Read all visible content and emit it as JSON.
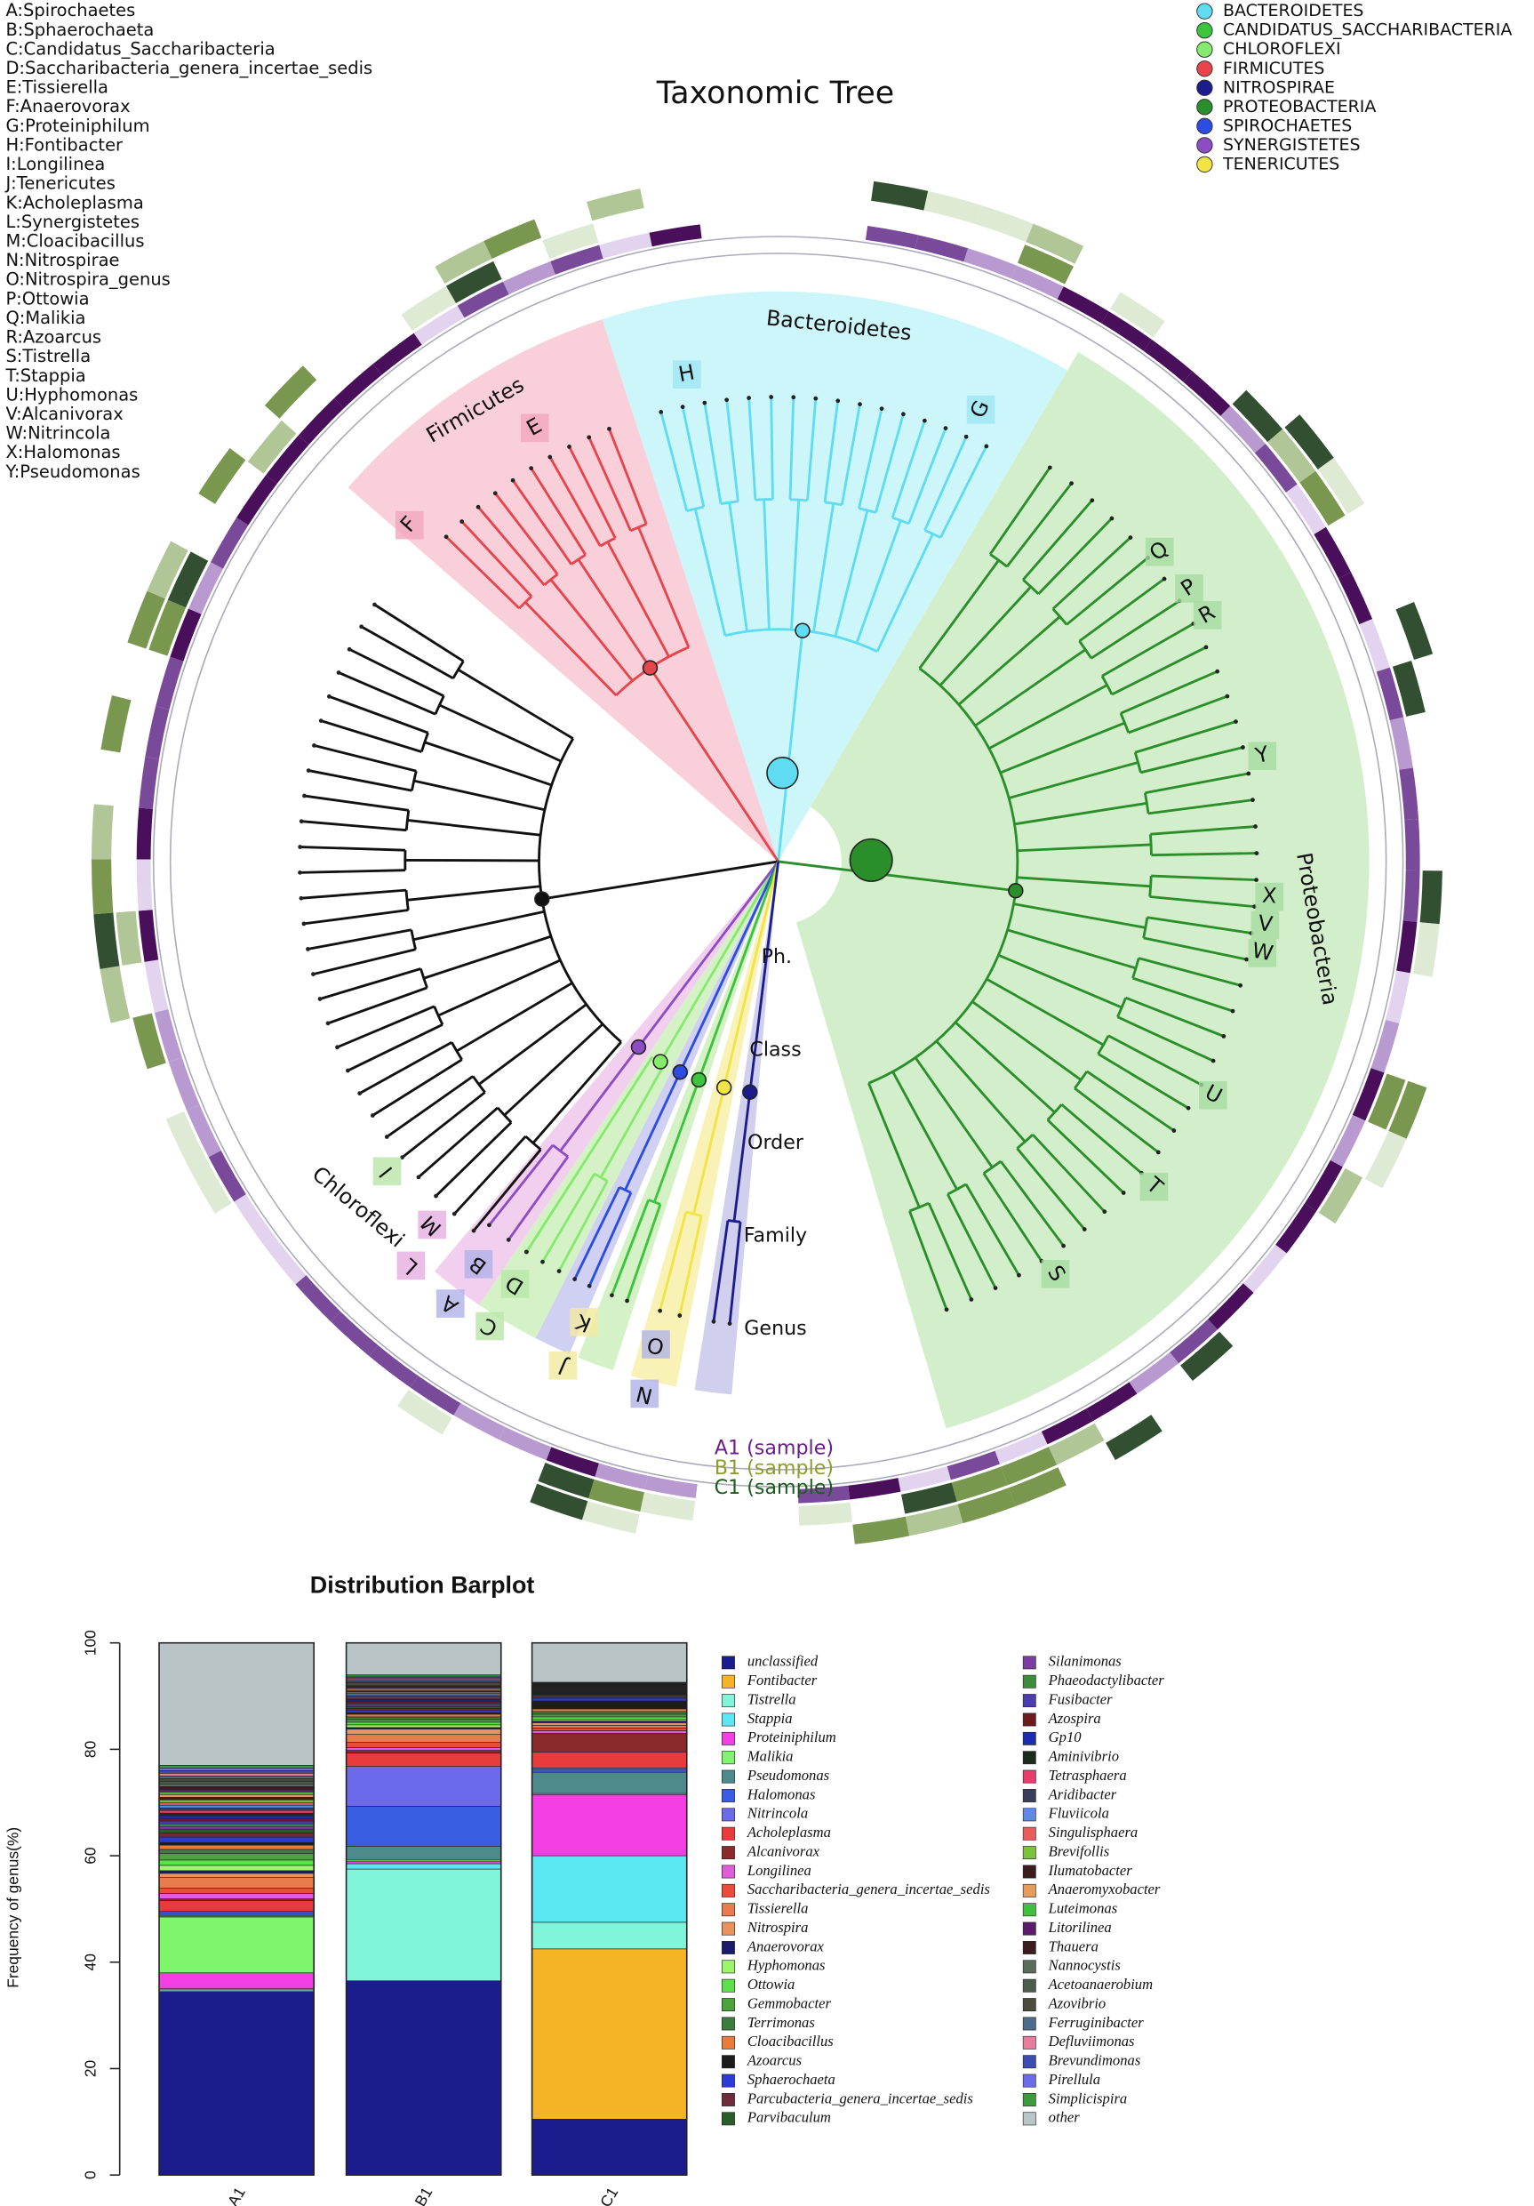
{
  "tree": {
    "title": "Taxonomic Tree",
    "key": [
      "A:Spirochaetes",
      "B:Sphaerochaeta",
      "C:Candidatus_Saccharibacteria",
      "D:Saccharibacteria_genera_incertae_sedis",
      "E:Tissierella",
      "F:Anaerovorax",
      "G:Proteiniphilum",
      "H:Fontibacter",
      "I:Longilinea",
      "J:Tenericutes",
      "K:Acholeplasma",
      "L:Synergistetes",
      "M:Cloacibacillus",
      "N:Nitrospirae",
      "O:Nitrospira_genus",
      "P:Ottowia",
      "Q:Malikia",
      "R:Azoarcus",
      "S:Tistrella",
      "T:Stappia",
      "U:Hyphomonas",
      "V:Alcanivorax",
      "W:Nitrincola",
      "X:Halomonas",
      "Y:Pseudomonas"
    ],
    "phylum_legend": [
      {
        "name": "BACTEROIDETES",
        "color": "#5fdcf2"
      },
      {
        "name": "CANDIDATUS_SACCHARIBACTERIA",
        "color": "#3cc43c"
      },
      {
        "name": "CHLOROFLEXI",
        "color": "#86ea6e"
      },
      {
        "name": "FIRMICUTES",
        "color": "#e8444c"
      },
      {
        "name": "NITROSPIRAE",
        "color": "#1c1c8c"
      },
      {
        "name": "PROTEOBACTERIA",
        "color": "#2a8e2a"
      },
      {
        "name": "SPIROCHAETES",
        "color": "#2c4ce2"
      },
      {
        "name": "SYNERGISTETES",
        "color": "#8c4cc4"
      },
      {
        "name": "TENERICUTES",
        "color": "#f2e444"
      }
    ],
    "clade_labels": [
      "Bacteroidetes",
      "Firmicutes",
      "Proteobacteria",
      "Chloroflexi"
    ],
    "node_labels": [
      "H",
      "G",
      "E",
      "F",
      "Q",
      "P",
      "R",
      "Y",
      "X",
      "V",
      "W",
      "U",
      "T",
      "S",
      "I",
      "M",
      "L",
      "B",
      "A",
      "D",
      "C",
      "K",
      "J",
      "O",
      "N"
    ],
    "levels": [
      "Ph.",
      "Class",
      "Order",
      "Family",
      "Genus"
    ],
    "rings": [
      {
        "label": "A1 (sample)",
        "color": "#6c1c8c"
      },
      {
        "label": "B1 (sample)",
        "color": "#8e9c2c"
      },
      {
        "label": "C1 (sample)",
        "color": "#1c5c1c"
      }
    ]
  },
  "chart_data": {
    "type": "stacked_bar",
    "title": "Distribution Barplot",
    "y_label": "Frequency of genus(%)",
    "categories": [
      "A1",
      "B1",
      "C1"
    ],
    "ylim": [
      0,
      100
    ],
    "yticks": [
      0,
      20,
      40,
      60,
      80,
      100
    ],
    "series": [
      {
        "name": "unclassified",
        "color": "#1c1c8e",
        "values": [
          34.5,
          36.5,
          10.5
        ]
      },
      {
        "name": "Fontibacter",
        "color": "#f5b326",
        "values": [
          0,
          0,
          32
        ]
      },
      {
        "name": "Tistrella",
        "color": "#80f5da",
        "values": [
          0.3,
          21,
          5
        ]
      },
      {
        "name": "Stappia",
        "color": "#5ce8f2",
        "values": [
          0.2,
          1,
          12.5
        ]
      },
      {
        "name": "Proteiniphilum",
        "color": "#f23ee2",
        "values": [
          3,
          0.5,
          11.5
        ]
      },
      {
        "name": "Malikia",
        "color": "#7ef56c",
        "values": [
          10.5,
          0.3,
          0.2
        ]
      },
      {
        "name": "Pseudomonas",
        "color": "#4e8a8c",
        "values": [
          0.3,
          2.5,
          4
        ]
      },
      {
        "name": "Halomonas",
        "color": "#3a5ee2",
        "values": [
          0.5,
          7.5,
          0.5
        ]
      },
      {
        "name": "Nitrincola",
        "color": "#6a6aea",
        "values": [
          0.3,
          7.5,
          0.3
        ]
      },
      {
        "name": "Acholeplasma",
        "color": "#e83c3c",
        "values": [
          2,
          2.5,
          3
        ]
      },
      {
        "name": "Alcanivorax",
        "color": "#8a2a2c",
        "values": [
          0.3,
          0.5,
          3.5
        ]
      },
      {
        "name": "Longilinea",
        "color": "#e05cd8",
        "values": [
          1,
          0.5,
          0.5
        ]
      },
      {
        "name": "Saccharibacteria_genera_incertae_sedis",
        "color": "#e84c3c",
        "values": [
          1,
          1,
          0.5
        ]
      },
      {
        "name": "Tissierella",
        "color": "#e87c4c",
        "values": [
          2,
          1.5,
          0.5
        ]
      },
      {
        "name": "Nitrospira",
        "color": "#e8925c",
        "values": [
          0.8,
          1,
          0.5
        ]
      },
      {
        "name": "Anaerovorax",
        "color": "#1c1c6c",
        "values": [
          0.5,
          0.3,
          0.3
        ]
      },
      {
        "name": "Hyphomonas",
        "color": "#9cf56c",
        "values": [
          1,
          0.5,
          0.3
        ]
      },
      {
        "name": "Ottowia",
        "color": "#5ce04c",
        "values": [
          1,
          0.5,
          0.5
        ]
      },
      {
        "name": "Gemmobacter",
        "color": "#4ca23c",
        "values": [
          1.2,
          0.5,
          0.5
        ]
      },
      {
        "name": "Terrimonas",
        "color": "#3c7c3c",
        "values": [
          0.8,
          0.5,
          0.5
        ]
      },
      {
        "name": "Cloacibacillus",
        "color": "#e87c3c",
        "values": [
          0.8,
          0.5,
          0.5
        ]
      },
      {
        "name": "Azoarcus",
        "color": "#1c1c1c",
        "values": [
          0.5,
          0.3,
          1.5
        ]
      },
      {
        "name": "Sphaerochaeta",
        "color": "#2c3cd2",
        "values": [
          1,
          0.5,
          0.5
        ]
      },
      {
        "name": "Parcubacteria_genera_incertae_sedis",
        "color": "#6c2c3c",
        "values": [
          0.8,
          0.3,
          0.3
        ]
      },
      {
        "name": "Parvibaculum",
        "color": "#2c5c2c",
        "values": [
          0.7,
          0.3,
          0.3
        ]
      },
      {
        "name": "Silanimonas",
        "color": "#7c3ca2",
        "values": [
          0.5,
          0.25,
          0.1
        ]
      },
      {
        "name": "Phaeodactylibacter",
        "color": "#3c8c3c",
        "values": [
          0.5,
          0.25,
          0.1
        ]
      },
      {
        "name": "Fusibacter",
        "color": "#4c3cb2",
        "values": [
          0.5,
          0.25,
          0.1
        ]
      },
      {
        "name": "Azospira",
        "color": "#6c1c1c",
        "values": [
          0.5,
          0.25,
          0.1
        ]
      },
      {
        "name": "Gp10",
        "color": "#1c2cb2",
        "values": [
          0.5,
          0.25,
          0.1
        ]
      },
      {
        "name": "Aminivibrio",
        "color": "#1c2c1c",
        "values": [
          0.5,
          0.25,
          0.1
        ]
      },
      {
        "name": "Tetrasphaera",
        "color": "#e83c6c",
        "values": [
          0.5,
          0.25,
          0.1
        ]
      },
      {
        "name": "Aridibacter",
        "color": "#3c3c5c",
        "values": [
          0.5,
          0.25,
          0.1
        ]
      },
      {
        "name": "Fluviicola",
        "color": "#5c8ce2",
        "values": [
          0.5,
          0.25,
          0.1
        ]
      },
      {
        "name": "Singulisphaera",
        "color": "#e85c5c",
        "values": [
          0.5,
          0.25,
          0.1
        ]
      },
      {
        "name": "Brevifollis",
        "color": "#7cc23c",
        "values": [
          0.5,
          0.25,
          0.1
        ]
      },
      {
        "name": "Ilumatobacter",
        "color": "#3c1c1c",
        "values": [
          0.5,
          0.25,
          0.1
        ]
      },
      {
        "name": "Anaeromyxobacter",
        "color": "#e89c5c",
        "values": [
          0.5,
          0.25,
          0.1
        ]
      },
      {
        "name": "Luteimonas",
        "color": "#3cc23c",
        "values": [
          0.5,
          0.25,
          0.1
        ]
      },
      {
        "name": "Litorilinea",
        "color": "#5c1c6c",
        "values": [
          0.5,
          0.25,
          0.1
        ]
      },
      {
        "name": "Thauera",
        "color": "#3c1c1e",
        "values": [
          0.5,
          0.25,
          0.1
        ]
      },
      {
        "name": "Nannocystis",
        "color": "#5c6c5c",
        "values": [
          0.5,
          0.25,
          0.1
        ]
      },
      {
        "name": "Acetoanaerobium",
        "color": "#4c5c4c",
        "values": [
          0.5,
          0.25,
          0.1
        ]
      },
      {
        "name": "Azovibrio",
        "color": "#4c4c3c",
        "values": [
          0.5,
          0.25,
          0.1
        ]
      },
      {
        "name": "Ferruginibacter",
        "color": "#4c6c8c",
        "values": [
          0.5,
          0.25,
          0.1
        ]
      },
      {
        "name": "Defluviimonas",
        "color": "#e87c9c",
        "values": [
          0.5,
          0.25,
          0.1
        ]
      },
      {
        "name": "Brevundimonas",
        "color": "#3c4cb2",
        "values": [
          0.5,
          0.25,
          0.1
        ]
      },
      {
        "name": "Pirellula",
        "color": "#6c6cea",
        "values": [
          0.5,
          0.25,
          0.1
        ]
      },
      {
        "name": "Simplicispira",
        "color": "#3c9c3c",
        "values": [
          0.5,
          0.25,
          0.1
        ]
      },
      {
        "name": "other",
        "color": "#b8c4c6",
        "values": [
          23,
          6,
          7.4
        ]
      }
    ]
  }
}
